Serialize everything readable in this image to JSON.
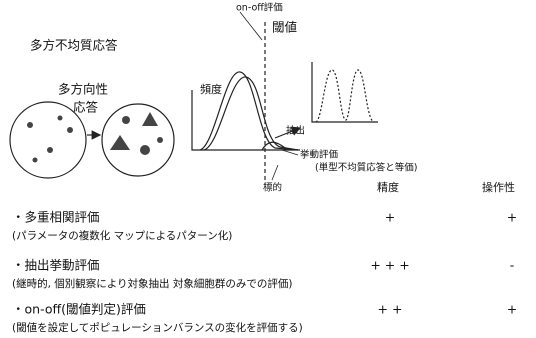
{
  "diagram": {
    "title": "多方不均質応答",
    "arrow_label": [
      "多方向性",
      "応答"
    ],
    "on_off_label": "on-off評価",
    "threshold_label": "閾値",
    "frequency_label": "頻度",
    "extract_label": "抽出",
    "behavior_label": "挙動評価",
    "behavior_note": "(単型不均質応答と等価)",
    "target_label": "標的"
  },
  "table": {
    "header": [
      "精度",
      "操作性"
    ],
    "rows": [
      {
        "name": "・多重相関評価",
        "note": "(パラメータの複数化 マップによるパターン化)",
        "accuracy": "+",
        "operability": "+"
      },
      {
        "name": "・抽出挙動評価",
        "note": "(継時的, 個別観察により対象抽出 対象細胞群のみでの評価)",
        "accuracy": "+ + +",
        "operability": "-"
      },
      {
        "name": "・on-off(閾値判定)評価",
        "note": "(閾値を設定してポピュレーションバランスの変化を評価する)",
        "accuracy": "+ +",
        "operability": "+"
      }
    ]
  }
}
